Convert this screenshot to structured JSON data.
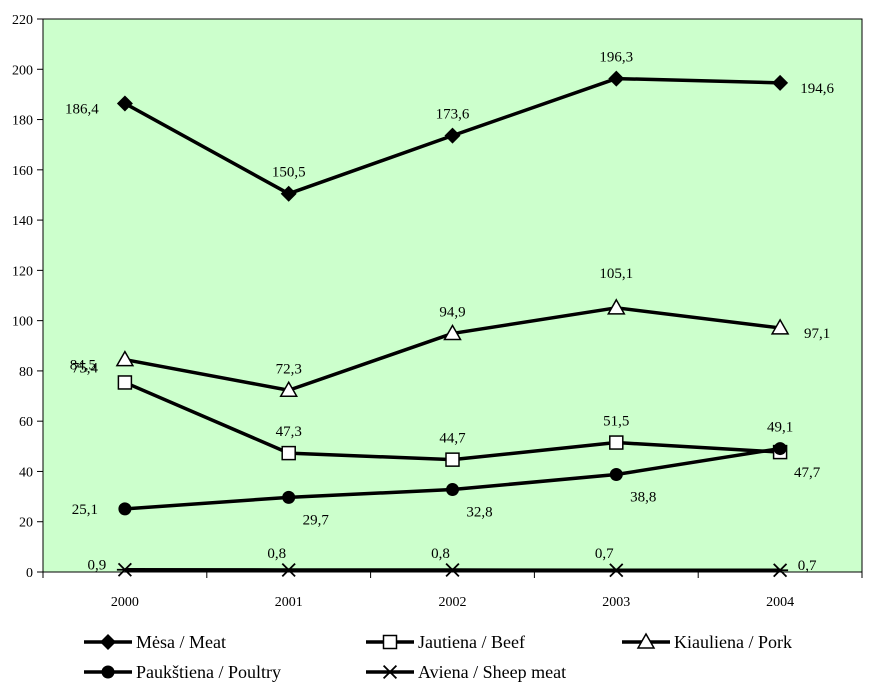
{
  "chart_data": {
    "type": "line",
    "categories": [
      "2000",
      "2001",
      "2002",
      "2003",
      "2004"
    ],
    "ylim": [
      0,
      220
    ],
    "yticks": [
      0,
      20,
      40,
      60,
      80,
      100,
      120,
      140,
      160,
      180,
      200,
      220
    ],
    "plot_background": "#CCFFCC",
    "line_color": "#000000",
    "grid": false,
    "legend_position": "bottom",
    "series": [
      {
        "name": "Mėsa  / Meat",
        "marker": "diamond-filled",
        "values": [
          186.4,
          150.5,
          173.6,
          196.3,
          194.6
        ],
        "labels": [
          "186,4",
          "150,5",
          "173,6",
          "196,3",
          "194,6"
        ]
      },
      {
        "name": "Jautiena /  Beef",
        "marker": "square-open",
        "values": [
          75.4,
          47.3,
          44.7,
          51.5,
          47.7
        ],
        "labels": [
          "75,4",
          "47,3",
          "44,7",
          "51,5",
          "47,7"
        ]
      },
      {
        "name": "Kiauliena /  Pork",
        "marker": "triangle-open",
        "values": [
          84.5,
          72.3,
          94.9,
          105.1,
          97.1
        ],
        "labels": [
          "84,5",
          "72,3",
          "94,9",
          "105,1",
          "97,1"
        ]
      },
      {
        "name": "Paukštiena / Poultry",
        "marker": "circle-filled",
        "values": [
          25.1,
          29.7,
          32.8,
          38.8,
          49.1
        ],
        "labels": [
          "25,1",
          "29,7",
          "32,8",
          "38,8",
          "49,1"
        ]
      },
      {
        "name": "Aviena / Sheep meat",
        "marker": "asterisk",
        "values": [
          0.9,
          0.8,
          0.8,
          0.7,
          0.7
        ],
        "labels": [
          "0,9",
          "0,8",
          "0,8",
          "0,7",
          "0,7"
        ]
      }
    ]
  }
}
